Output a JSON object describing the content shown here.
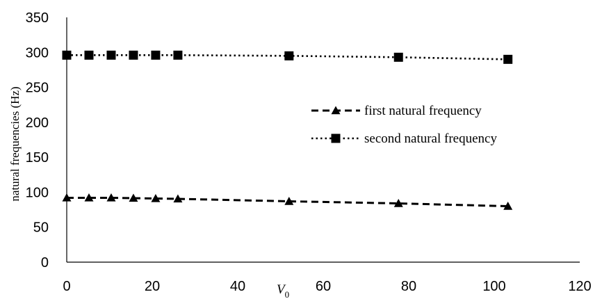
{
  "chart_data": {
    "type": "line",
    "title": "",
    "xlabel": "V",
    "xlabel_subscript": "0",
    "ylabel": "natural frequencies (Hz)",
    "xlim": [
      0,
      120
    ],
    "ylim": [
      0,
      350
    ],
    "x_ticks": [
      "0",
      "20",
      "40",
      "60",
      "80",
      "100",
      "120"
    ],
    "y_ticks": [
      "0",
      "50",
      "100",
      "150",
      "200",
      "250",
      "300",
      "350"
    ],
    "grid": false,
    "legend_position": "right-middle",
    "series": [
      {
        "name": "first natural frequency",
        "line_style": "dashed",
        "marker": "triangle",
        "x": [
          0,
          5.2,
          10.4,
          15.6,
          20.8,
          26,
          52,
          77.6,
          103.2
        ],
        "y": [
          92,
          92,
          92,
          91.5,
          91,
          90.5,
          87,
          84,
          80
        ]
      },
      {
        "name": "second natural frequency",
        "line_style": "dotted",
        "marker": "square",
        "x": [
          0,
          5.2,
          10.4,
          15.6,
          20.8,
          26,
          52,
          77.6,
          103.2
        ],
        "y": [
          296,
          296,
          296,
          296,
          296,
          296,
          295,
          293,
          290
        ]
      }
    ]
  }
}
